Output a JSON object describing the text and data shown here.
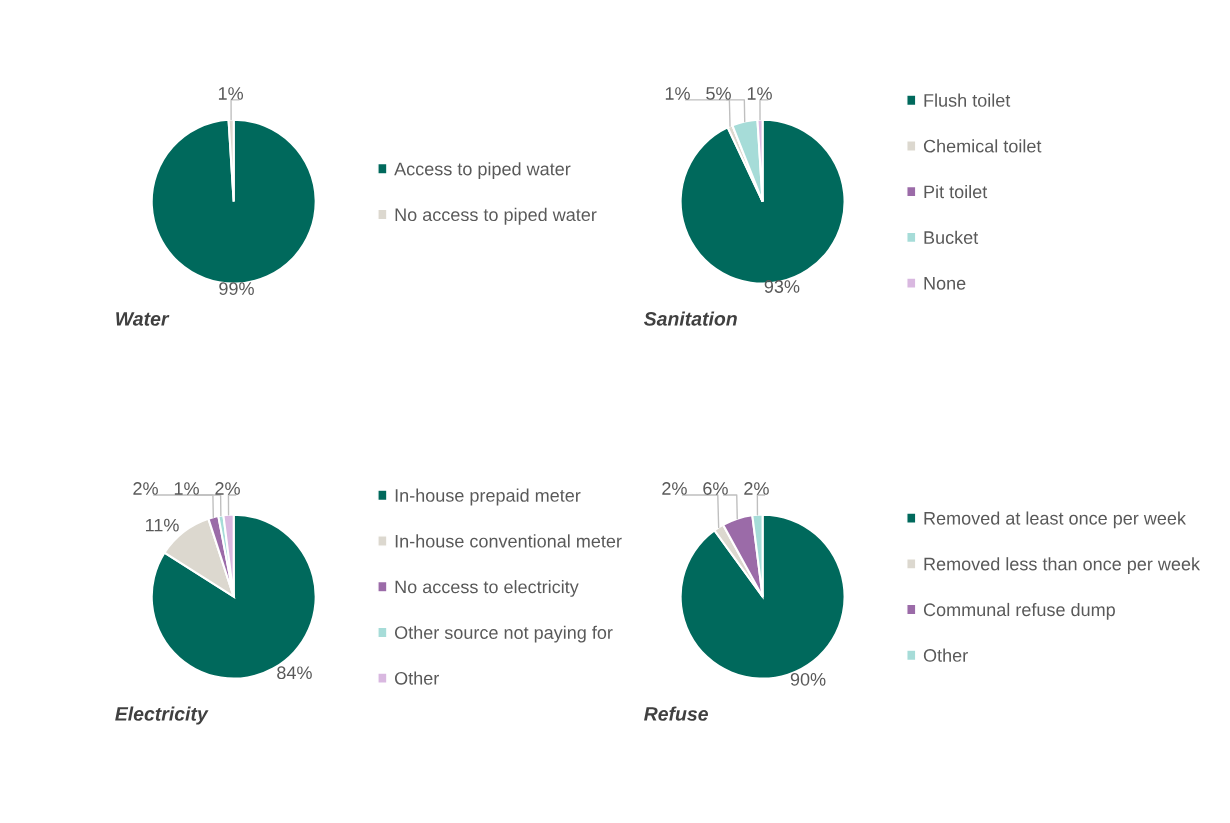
{
  "chart_data": [
    {
      "type": "pie",
      "title": "Water",
      "categories": [
        "Access to piped water",
        "No access to piped water"
      ],
      "values": [
        99,
        1
      ],
      "colors": [
        "#00695c",
        "#dcd8cf"
      ],
      "value_labels": [
        "99%",
        "1%"
      ],
      "legend": "right"
    },
    {
      "type": "pie",
      "title": "Sanitation",
      "categories": [
        "Flush toilet",
        "Chemical toilet",
        "Pit toilet",
        "Bucket",
        "None"
      ],
      "values": [
        93,
        1,
        0,
        5,
        1
      ],
      "colors": [
        "#00695c",
        "#dcd8cf",
        "#9b6ba8",
        "#a6dcd8",
        "#d9b8e0"
      ],
      "value_labels": [
        "93%",
        "1%",
        null,
        "5%",
        "1%"
      ],
      "legend": "right"
    },
    {
      "type": "pie",
      "title": "Electricity",
      "categories": [
        "In-house prepaid meter",
        "In-house conventional meter",
        "No access to electricity",
        "Other source not paying for",
        "Other"
      ],
      "values": [
        84,
        11,
        2,
        1,
        2
      ],
      "colors": [
        "#00695c",
        "#dcd8cf",
        "#9b6ba8",
        "#a6dcd8",
        "#d9b8e0"
      ],
      "value_labels": [
        "84%",
        "11%",
        "2%",
        "1%",
        "2%"
      ],
      "legend": "right"
    },
    {
      "type": "pie",
      "title": "Refuse",
      "categories": [
        "Removed at least once per week",
        "Removed less than once per week",
        "Communal refuse dump",
        "Other"
      ],
      "values": [
        90,
        2,
        6,
        2
      ],
      "colors": [
        "#00695c",
        "#dcd8cf",
        "#9b6ba8",
        "#a6dcd8"
      ],
      "value_labels": [
        "90%",
        "2%",
        "6%",
        "2%"
      ],
      "legend": "right"
    }
  ]
}
